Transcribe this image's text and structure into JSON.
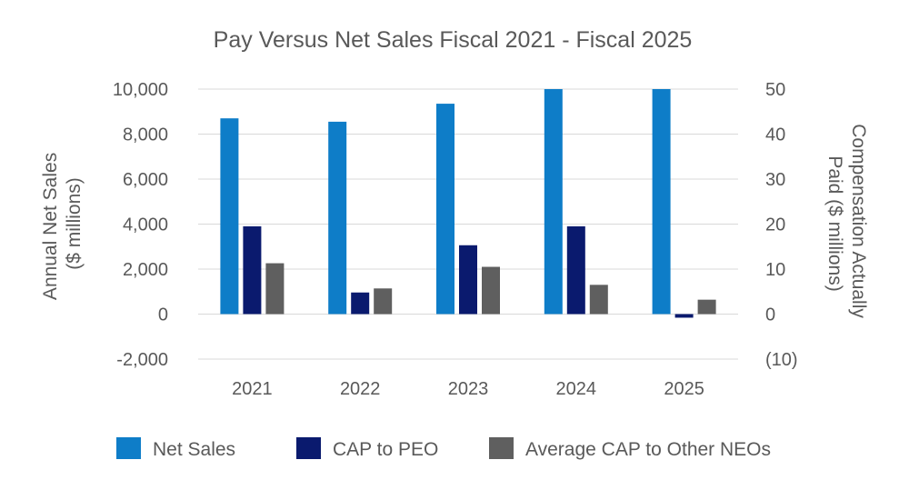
{
  "chart_data": {
    "type": "bar",
    "title": "Pay Versus Net Sales Fiscal 2021 - Fiscal 2025",
    "categories": [
      "2021",
      "2022",
      "2023",
      "2024",
      "2025"
    ],
    "y_left": {
      "label_lines": [
        "Annual Net Sales",
        "($ millions)"
      ],
      "range": [
        -2000,
        10000
      ],
      "ticks": [
        10000,
        8000,
        6000,
        4000,
        2000,
        0,
        -2000
      ],
      "tick_labels": [
        "10,000",
        "8,000",
        "6,000",
        "4,000",
        "2,000",
        "0",
        "-2,000"
      ]
    },
    "y_right": {
      "label_lines": [
        "Compensation Actually",
        "Paid ($ millions)"
      ],
      "range": [
        -10,
        50
      ],
      "ticks": [
        50,
        40,
        30,
        20,
        10,
        0,
        -10
      ],
      "tick_labels": [
        "50",
        "40",
        "30",
        "20",
        "10",
        "0",
        "(10)"
      ]
    },
    "grid": true,
    "legend_position": "bottom",
    "series": [
      {
        "name": "Net Sales",
        "axis": "left",
        "color": "#0e7dc8",
        "values": [
          8700,
          8550,
          9350,
          10000,
          10000
        ]
      },
      {
        "name": "CAP to PEO",
        "axis": "right",
        "color": "#0a1a6e",
        "values": [
          19.5,
          4.8,
          15.3,
          19.5,
          -0.8
        ]
      },
      {
        "name": "Average CAP to Other NEOs",
        "axis": "right",
        "color": "#5f5f5f",
        "values": [
          11.3,
          5.7,
          10.5,
          6.5,
          3.2
        ]
      }
    ]
  }
}
